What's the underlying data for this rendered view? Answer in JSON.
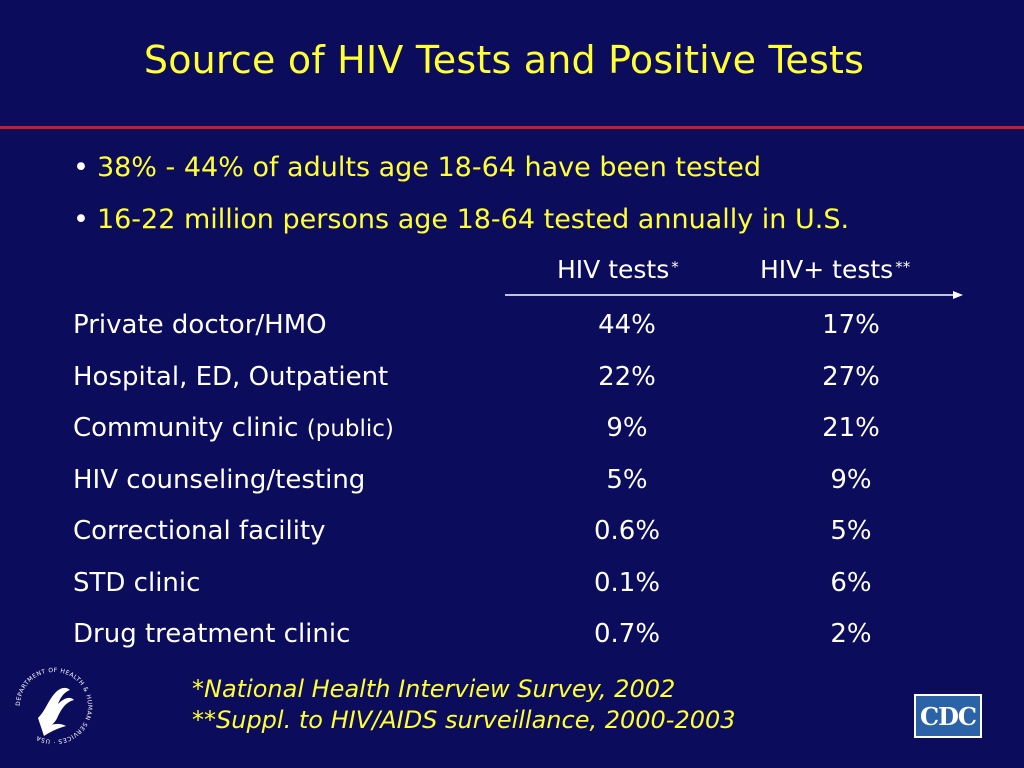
{
  "title": "Source of HIV Tests and Positive Tests",
  "bullets": [
    "38% - 44% of adults age 18-64 have been tested",
    "16-22 million persons age 18-64 tested annually in U.S."
  ],
  "columns": {
    "a": {
      "label": "HIV tests",
      "mark": "*"
    },
    "b": {
      "label": "HIV+ tests",
      "mark": "**"
    }
  },
  "rows": [
    {
      "label": "Private doctor/HMO",
      "label_sub": "",
      "a": "44%",
      "b": "17%"
    },
    {
      "label": "Hospital, ED, Outpatient",
      "label_sub": "",
      "a": "22%",
      "b": "27%"
    },
    {
      "label": "Community clinic ",
      "label_sub": "(public)",
      "a": "9%",
      "b": "21%"
    },
    {
      "label": "HIV counseling/testing",
      "label_sub": "",
      "a": "5%",
      "b": "9%"
    },
    {
      "label": "Correctional facility",
      "label_sub": "",
      "a": "0.6%",
      "b": "5%"
    },
    {
      "label": "STD clinic",
      "label_sub": "",
      "a": "0.1%",
      "b": "6%"
    },
    {
      "label": "Drug treatment clinic",
      "label_sub": "",
      "a": "0.7%",
      "b": "2%"
    }
  ],
  "footnotes": [
    "*National Health Interview Survey, 2002",
    "**Suppl. to HIV/AIDS surveillance, 2000-2003"
  ],
  "logos": {
    "cdc": "CDC",
    "hhs_ring": "DEPARTMENT OF HEALTH & HUMAN SERVICES · USA"
  },
  "colors": {
    "background": "#0c0c5c",
    "title": "#ffff33",
    "rule": "#cc1a2a",
    "text": "#ffffff"
  }
}
